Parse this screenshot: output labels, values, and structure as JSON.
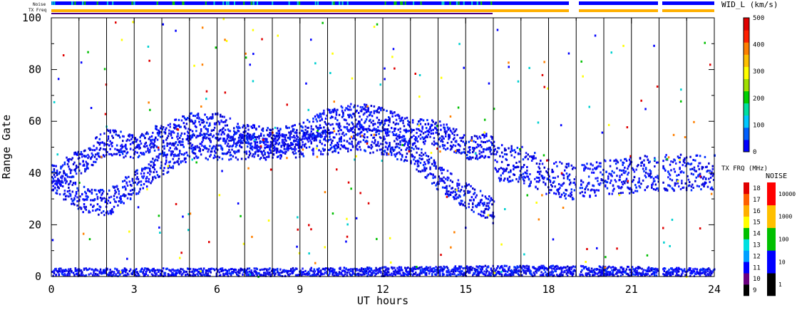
{
  "chart_data": {
    "type": "heatmap",
    "title": "",
    "xlabel": "UT hours",
    "ylabel": "Range Gate",
    "xlim": [
      0,
      24
    ],
    "ylim": [
      0,
      100
    ],
    "x_ticks": [
      "0",
      "3",
      "6",
      "9",
      "12",
      "15",
      "18",
      "21",
      "24"
    ],
    "y_ticks": [
      "0",
      "20",
      "40",
      "60",
      "80",
      "100"
    ],
    "data_gaps_ut": [
      [
        19.0,
        19.1
      ],
      [
        22.0,
        22.1
      ]
    ],
    "strip_labels": [
      "Noise",
      "TX Freq"
    ],
    "main_colorbar": {
      "label": "WID_L (km/s)",
      "ticks": [
        "0",
        "100",
        "200",
        "300",
        "400",
        "500"
      ],
      "range": [
        0,
        500
      ],
      "colors": [
        "#0000ff",
        "#0060ff",
        "#00c8ff",
        "#00e0a0",
        "#00d000",
        "#a0e000",
        "#ffff00",
        "#ffc000",
        "#ff8000",
        "#ff2000",
        "#e00000"
      ]
    },
    "freq_colorbar": {
      "label": "TX FRQ (MHz)",
      "ticks": [
        "9",
        "10",
        "11",
        "12",
        "13",
        "14",
        "15",
        "16",
        "17",
        "18"
      ],
      "colors": [
        "#000000",
        "#6a0080",
        "#0000ff",
        "#00a0ff",
        "#00e0e0",
        "#00c000",
        "#ffff00",
        "#ffb000",
        "#ff6000",
        "#e00000"
      ]
    },
    "noise_colorbar": {
      "label": "NOISE",
      "ticks": [
        "1",
        "10",
        "100",
        "1000",
        "10000"
      ],
      "colors": [
        "#000000",
        "#0000ff",
        "#00c000",
        "#ffc000",
        "#ff0000"
      ]
    },
    "echo_bands": [
      {
        "name": "lower band",
        "points": [
          [
            0.0,
            38
          ],
          [
            1.0,
            30
          ],
          [
            2.0,
            28
          ],
          [
            3.0,
            36
          ],
          [
            4.0,
            44
          ],
          [
            5.0,
            50
          ],
          [
            6.0,
            50
          ],
          [
            7.0,
            50
          ],
          [
            8.0,
            50
          ],
          [
            9.0,
            51
          ],
          [
            10.0,
            52
          ],
          [
            11.0,
            53
          ],
          [
            12.0,
            52
          ],
          [
            13.0,
            48
          ],
          [
            14.0,
            38
          ],
          [
            15.0,
            31
          ],
          [
            16.0,
            25
          ]
        ]
      },
      {
        "name": "upper band",
        "points": [
          [
            0.0,
            38
          ],
          [
            1.0,
            44
          ],
          [
            2.0,
            52
          ],
          [
            3.0,
            50
          ],
          [
            4.0,
            54
          ],
          [
            5.0,
            58
          ],
          [
            6.0,
            58
          ],
          [
            7.0,
            54
          ],
          [
            8.0,
            52
          ],
          [
            9.0,
            54
          ],
          [
            10.0,
            60
          ],
          [
            11.0,
            62
          ],
          [
            12.0,
            60
          ],
          [
            13.0,
            56
          ],
          [
            14.0,
            55
          ],
          [
            15.0,
            50
          ],
          [
            16.0,
            50
          ]
        ]
      },
      {
        "name": "late band",
        "points": [
          [
            16.0,
            44
          ],
          [
            17.0,
            43
          ],
          [
            18.0,
            38
          ],
          [
            19.0,
            36
          ],
          [
            20.0,
            38
          ],
          [
            21.0,
            39
          ],
          [
            22.0,
            40
          ],
          [
            23.0,
            40
          ],
          [
            24.0,
            40
          ]
        ]
      },
      {
        "name": "near range",
        "points": [
          [
            0.0,
            1
          ],
          [
            8.0,
            1
          ],
          [
            16.0,
            2
          ],
          [
            19.0,
            2
          ],
          [
            24.0,
            1
          ]
        ]
      }
    ]
  }
}
